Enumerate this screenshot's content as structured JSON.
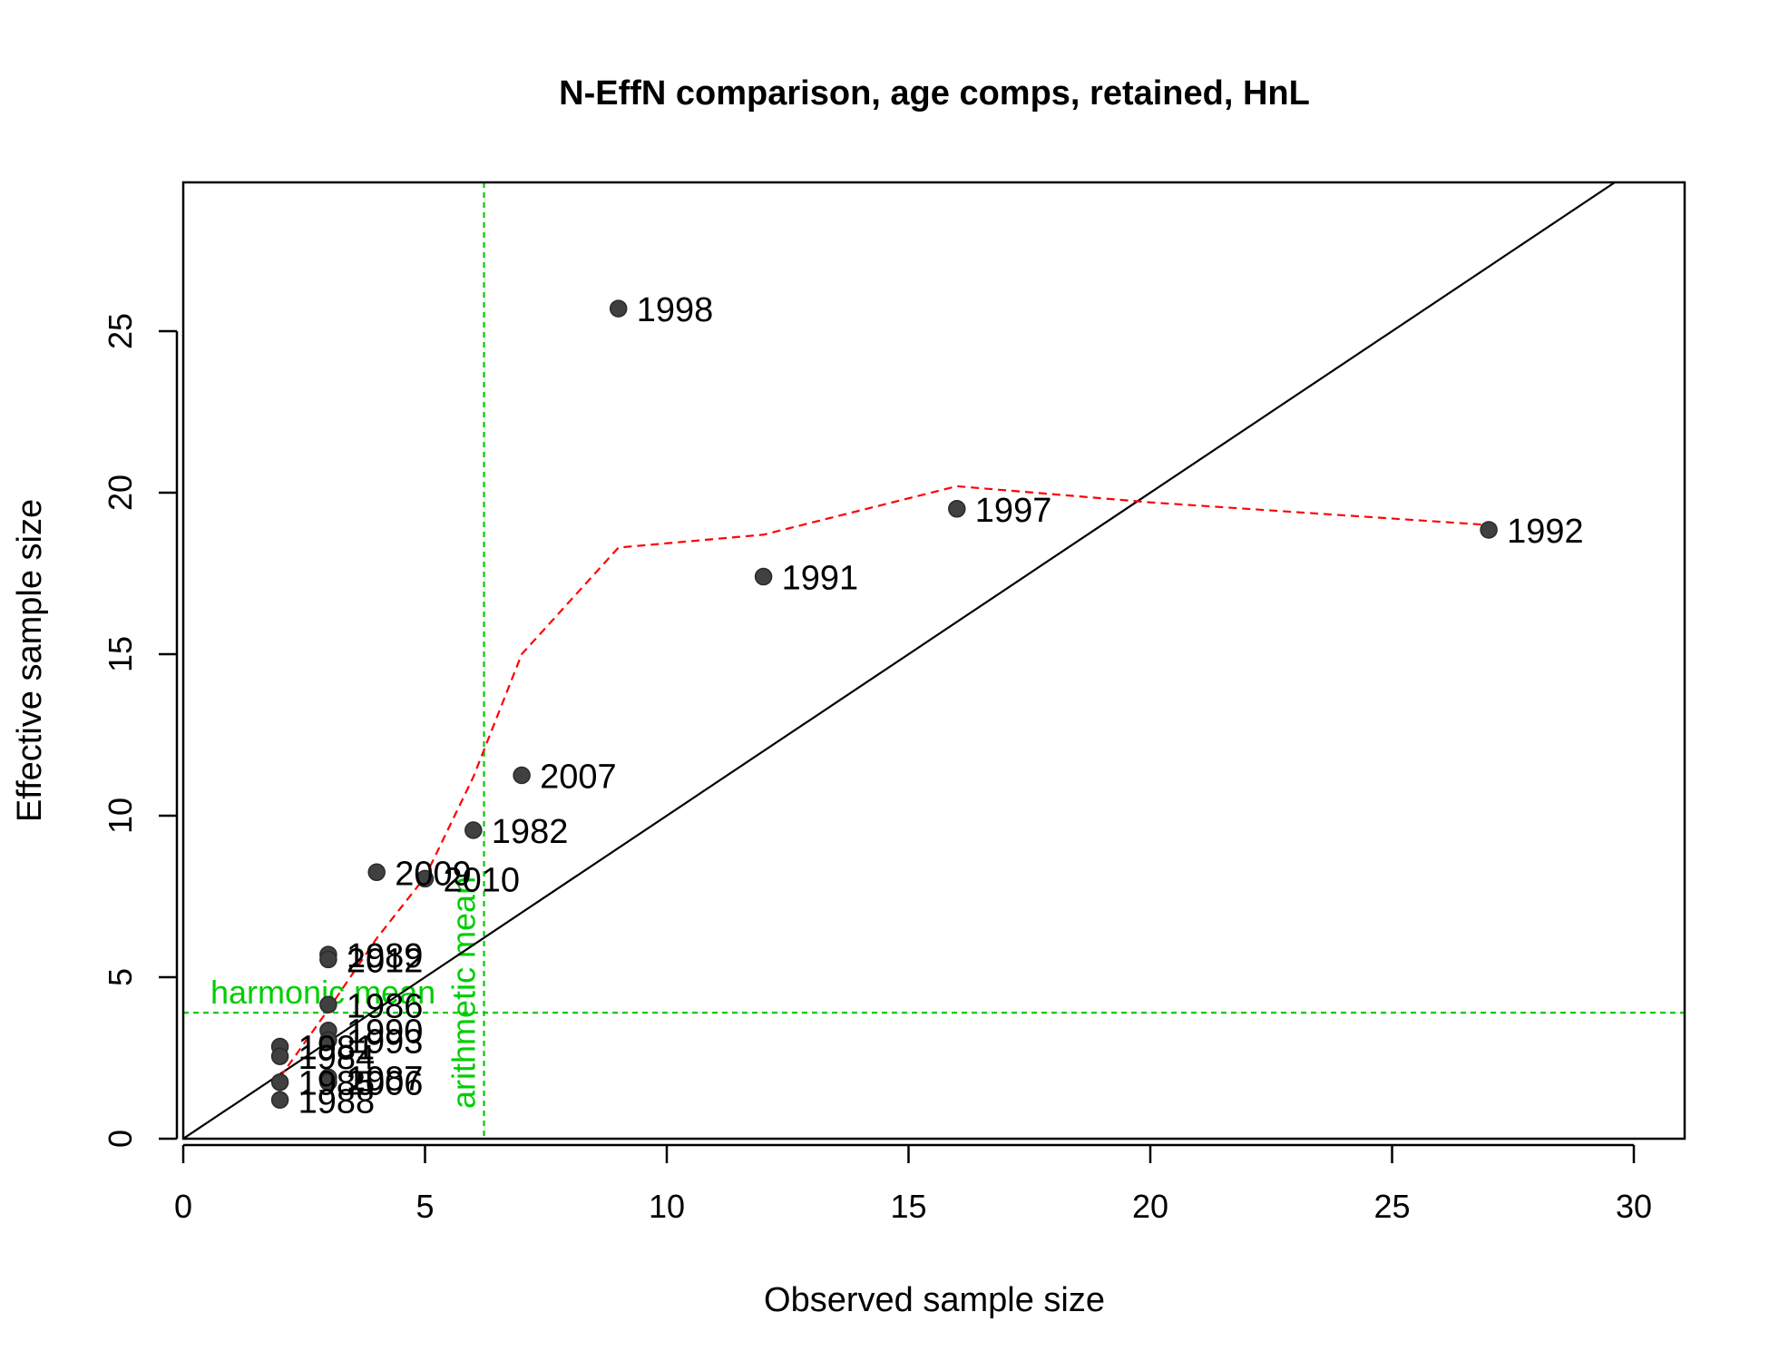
{
  "chart_data": {
    "type": "scatter",
    "title": "N-EffN comparison, age comps, retained, HnL",
    "xlabel": "Observed sample size",
    "ylabel": "Effective sample size",
    "xlim": [
      0,
      31
    ],
    "ylim": [
      0,
      29.6
    ],
    "xticks": [
      0,
      5,
      10,
      15,
      20,
      25,
      30
    ],
    "yticks": [
      0,
      5,
      10,
      15,
      20,
      25
    ],
    "grid": false,
    "point_color": "#404040",
    "points": [
      {
        "label": "1998",
        "x": 9,
        "y": 25.7
      },
      {
        "label": "1997",
        "x": 16,
        "y": 19.5
      },
      {
        "label": "1992",
        "x": 27,
        "y": 18.85
      },
      {
        "label": "1991",
        "x": 12,
        "y": 17.4
      },
      {
        "label": "2007",
        "x": 7,
        "y": 11.25
      },
      {
        "label": "1982",
        "x": 6,
        "y": 9.55
      },
      {
        "label": "2009",
        "x": 4,
        "y": 8.25
      },
      {
        "label": "2010",
        "x": 5,
        "y": 8.05
      },
      {
        "label": "1989",
        "x": 3,
        "y": 5.7
      },
      {
        "label": "2012",
        "x": 3,
        "y": 5.55
      },
      {
        "label": "1986",
        "x": 3,
        "y": 4.15
      },
      {
        "label": "1990",
        "x": 3,
        "y": 3.35
      },
      {
        "label": "1993",
        "x": 3,
        "y": 3.05
      },
      {
        "label": "1981",
        "x": 2,
        "y": 2.85
      },
      {
        "label": "1984",
        "x": 2,
        "y": 2.55
      },
      {
        "label": "1987",
        "x": 3,
        "y": 1.9
      },
      {
        "label": "2006",
        "x": 3,
        "y": 1.75
      },
      {
        "label": "1985",
        "x": 2,
        "y": 1.75
      },
      {
        "label": "1988",
        "x": 2,
        "y": 1.2
      }
    ],
    "identity_line": {
      "color": "#000000"
    },
    "smoother": {
      "color": "#ff0000",
      "x": [
        2,
        3,
        4,
        5,
        6,
        7,
        9,
        12,
        16,
        20,
        27
      ],
      "y": [
        1.9,
        4.0,
        6.2,
        8.1,
        11.2,
        15.0,
        18.3,
        18.7,
        20.2,
        19.7,
        19.0
      ]
    },
    "reference_lines": {
      "color": "#00cd00",
      "harmonic_mean": {
        "label": "harmonic mean",
        "value": 3.9
      },
      "arithmetic_mean": {
        "label": "arithmetic mean",
        "value": 6.22
      }
    }
  }
}
